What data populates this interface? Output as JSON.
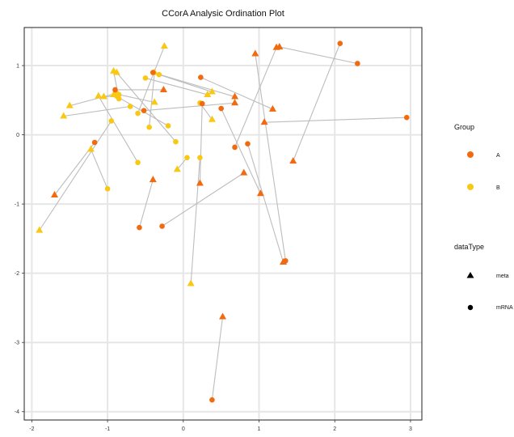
{
  "chart_data": {
    "type": "scatter",
    "title": "CCorA Analysic Ordination Plot",
    "xlabel": "",
    "ylabel": "",
    "xlim": [
      -2.1,
      3.15
    ],
    "ylim": [
      -4.12,
      1.55
    ],
    "xticks": [
      -2,
      -1,
      0,
      1,
      2,
      3
    ],
    "yticks": [
      -4,
      -3,
      -2,
      -1,
      0,
      1
    ],
    "grid": true,
    "colors": {
      "A": "#F26A0F",
      "B": "#F9C814",
      "link": "#BDBDBD",
      "frame": "#222222"
    },
    "legend": {
      "position": "right",
      "group_title": "Group",
      "group_items": [
        {
          "label": "A",
          "color": "#F26A0F"
        },
        {
          "label": "B",
          "color": "#F9C814"
        }
      ],
      "type_title": "dataType",
      "type_items": [
        {
          "label": "meta",
          "shape": "triangle"
        },
        {
          "label": "mRNA",
          "shape": "circle"
        }
      ]
    },
    "pairs": [
      {
        "group": "B",
        "meta": [
          -0.25,
          1.28
        ],
        "mrna": [
          -0.6,
          0.31
        ]
      },
      {
        "group": "B",
        "meta": [
          -0.92,
          0.92
        ],
        "mrna": [
          -0.85,
          0.52
        ]
      },
      {
        "group": "B",
        "meta": [
          -1.9,
          -1.38
        ],
        "mrna": [
          -0.95,
          0.2
        ]
      },
      {
        "group": "B",
        "meta": [
          -1.58,
          0.27
        ],
        "mrna": [
          -0.7,
          0.41
        ]
      },
      {
        "group": "B",
        "meta": [
          -1.5,
          0.42
        ],
        "mrna": [
          -0.88,
          0.6
        ]
      },
      {
        "group": "B",
        "meta": [
          -1.22,
          -0.21
        ],
        "mrna": [
          -1.0,
          -0.78
        ]
      },
      {
        "group": "B",
        "meta": [
          -1.12,
          0.56
        ],
        "mrna": [
          -0.6,
          -0.4
        ]
      },
      {
        "group": "B",
        "meta": [
          -1.05,
          0.55
        ],
        "mrna": [
          -0.88,
          0.56
        ]
      },
      {
        "group": "B",
        "meta": [
          -0.92,
          0.58
        ],
        "mrna": [
          -0.2,
          0.13
        ]
      },
      {
        "group": "B",
        "meta": [
          -0.88,
          0.9
        ],
        "mrna": [
          -0.1,
          -0.1
        ]
      },
      {
        "group": "B",
        "meta": [
          -0.38,
          0.9
        ],
        "mrna": [
          -0.45,
          0.11
        ]
      },
      {
        "group": "B",
        "meta": [
          -0.38,
          0.47
        ],
        "mrna": [
          -0.85,
          0.58
        ]
      },
      {
        "group": "B",
        "meta": [
          0.32,
          0.58
        ],
        "mrna": [
          -0.5,
          0.82
        ]
      },
      {
        "group": "B",
        "meta": [
          0.38,
          0.62
        ],
        "mrna": [
          -0.32,
          0.87
        ]
      },
      {
        "group": "B",
        "meta": [
          0.38,
          0.22
        ],
        "mrna": [
          0.22,
          0.46
        ]
      },
      {
        "group": "B",
        "meta": [
          -0.08,
          -0.5
        ],
        "mrna": [
          0.05,
          -0.33
        ]
      },
      {
        "group": "B",
        "meta": [
          0.1,
          -2.15
        ],
        "mrna": [
          0.22,
          -0.33
        ]
      },
      {
        "group": "A",
        "meta": [
          0.52,
          -2.63
        ],
        "mrna": [
          0.38,
          -3.83
        ]
      },
      {
        "group": "A",
        "meta": [
          -0.4,
          -0.65
        ],
        "mrna": [
          -0.58,
          -1.34
        ]
      },
      {
        "group": "A",
        "meta": [
          0.8,
          -0.55
        ],
        "mrna": [
          -0.28,
          -1.32
        ]
      },
      {
        "group": "A",
        "meta": [
          0.22,
          -0.7
        ],
        "mrna": [
          0.25,
          0.45
        ]
      },
      {
        "group": "A",
        "meta": [
          -1.7,
          -0.87
        ],
        "mrna": [
          -1.17,
          -0.11
        ]
      },
      {
        "group": "A",
        "meta": [
          -0.26,
          0.65
        ],
        "mrna": [
          -0.9,
          0.65
        ]
      },
      {
        "group": "A",
        "meta": [
          0.68,
          0.55
        ],
        "mrna": [
          -0.4,
          0.9
        ]
      },
      {
        "group": "A",
        "meta": [
          0.68,
          0.46
        ],
        "mrna": [
          -0.52,
          0.35
        ]
      },
      {
        "group": "A",
        "meta": [
          1.18,
          0.37
        ],
        "mrna": [
          0.23,
          0.83
        ]
      },
      {
        "group": "A",
        "meta": [
          0.95,
          1.17
        ],
        "mrna": [
          1.35,
          -1.82
        ]
      },
      {
        "group": "A",
        "meta": [
          1.02,
          -0.85
        ],
        "mrna": [
          0.5,
          0.38
        ]
      },
      {
        "group": "A",
        "meta": [
          1.23,
          1.26
        ],
        "mrna": [
          0.68,
          -0.18
        ]
      },
      {
        "group": "A",
        "meta": [
          1.27,
          1.27
        ],
        "mrna": [
          2.3,
          1.03
        ]
      },
      {
        "group": "A",
        "meta": [
          1.07,
          0.18
        ],
        "mrna": [
          2.95,
          0.25
        ]
      },
      {
        "group": "A",
        "meta": [
          1.32,
          -1.84
        ],
        "mrna": [
          0.85,
          -0.13
        ]
      },
      {
        "group": "A",
        "meta": [
          1.45,
          -0.38
        ],
        "mrna": [
          2.07,
          1.32
        ]
      }
    ]
  }
}
